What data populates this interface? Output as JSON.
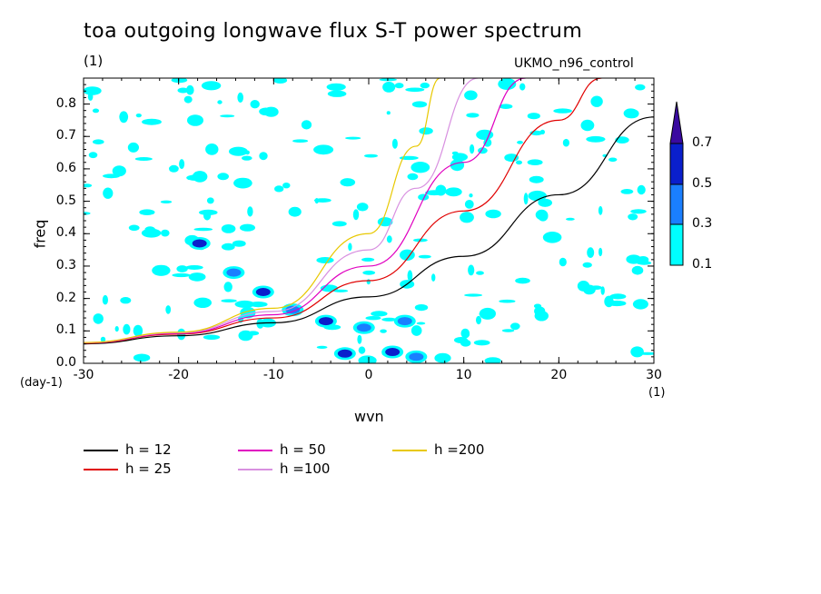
{
  "figure": {
    "title": "toa outgoing longwave flux S-T power spectrum",
    "title_unit": "(1)",
    "run_label": "UKMO_n96_control",
    "xlabel": "wvn",
    "ylabel": "freq",
    "x_unit": "(1)",
    "y_unit": "(day-1)"
  },
  "chart_data": {
    "type": "contour",
    "title": "toa outgoing longwave flux S-T power spectrum",
    "xlabel": "wvn",
    "ylabel": "freq",
    "xlim": [
      -30,
      30
    ],
    "ylim": [
      0,
      0.88
    ],
    "x_ticks": [
      -30,
      -20,
      -10,
      0,
      10,
      20,
      30
    ],
    "y_ticks": [
      0.0,
      0.1,
      0.2,
      0.3,
      0.4,
      0.5,
      0.6,
      0.7,
      0.8
    ],
    "grid": false,
    "colorbar": {
      "levels": [
        0.1,
        0.3,
        0.5,
        0.7
      ],
      "colors": [
        "#00ffff",
        "#1a7fff",
        "#0a1fcc",
        "#3a0aa0"
      ]
    },
    "contour_blobs": [
      {
        "x": -17.8,
        "y": 0.37,
        "level": 0.5
      },
      {
        "x": -14.2,
        "y": 0.28,
        "level": 0.3
      },
      {
        "x": -11.1,
        "y": 0.22,
        "level": 0.5
      },
      {
        "x": -8.0,
        "y": 0.165,
        "level": 0.3
      },
      {
        "x": -4.5,
        "y": 0.13,
        "level": 0.5
      },
      {
        "x": -2.5,
        "y": 0.03,
        "level": 0.5
      },
      {
        "x": 2.5,
        "y": 0.035,
        "level": 0.5
      },
      {
        "x": 3.8,
        "y": 0.13,
        "level": 0.3
      },
      {
        "x": 5.0,
        "y": 0.02,
        "level": 0.3
      },
      {
        "x": -0.5,
        "y": 0.11,
        "level": 0.3
      }
    ],
    "dispersion_curves": [
      {
        "name": "h = 12",
        "color": "#000000",
        "x": [
          -30,
          -20,
          -10,
          0,
          10,
          20,
          30
        ],
        "y": [
          0.06,
          0.085,
          0.125,
          0.205,
          0.33,
          0.52,
          0.76
        ]
      },
      {
        "name": "h = 25",
        "color": "#e00000",
        "x": [
          -30,
          -20,
          -10,
          0,
          10,
          20,
          24.5
        ],
        "y": [
          0.062,
          0.09,
          0.14,
          0.255,
          0.47,
          0.75,
          0.88
        ]
      },
      {
        "name": "h = 50",
        "color": "#e000c0",
        "x": [
          -30,
          -20,
          -10,
          0,
          10,
          16.5
        ],
        "y": [
          0.063,
          0.092,
          0.15,
          0.3,
          0.62,
          0.88
        ]
      },
      {
        "name": "h =100",
        "color": "#d890e0",
        "x": [
          -30,
          -20,
          -10,
          0,
          5,
          11.5
        ],
        "y": [
          0.064,
          0.094,
          0.16,
          0.35,
          0.54,
          0.88
        ]
      },
      {
        "name": "h =200",
        "color": "#e8c800",
        "x": [
          -30,
          -20,
          -10,
          0,
          5,
          7.5
        ],
        "y": [
          0.064,
          0.096,
          0.17,
          0.4,
          0.67,
          0.88
        ]
      }
    ]
  }
}
